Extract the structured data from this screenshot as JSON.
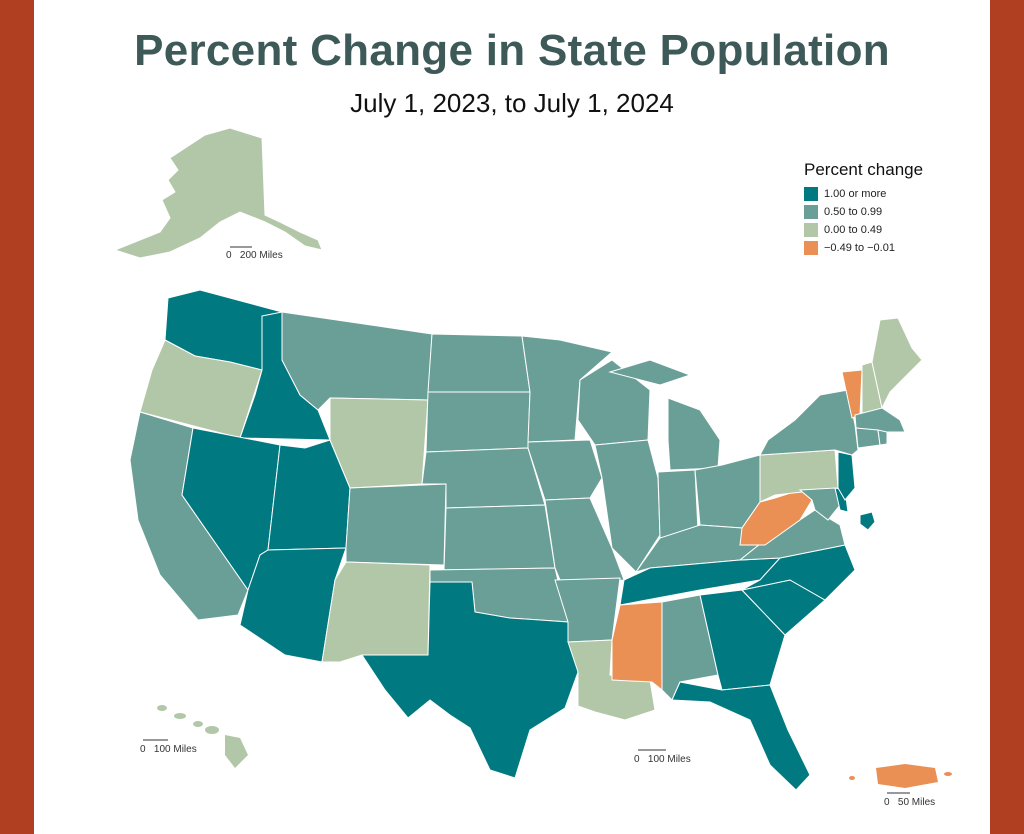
{
  "title": "Percent Change in State Population",
  "subtitle": "July 1, 2023, to July 1, 2024",
  "legend": {
    "title": "Percent change",
    "items": [
      {
        "label": "1.00 or more",
        "color": "#007a80"
      },
      {
        "label": "0.50 to 0.99",
        "color": "#6a9f98"
      },
      {
        "label": "0.00 to 0.49",
        "color": "#b2c7a8"
      },
      {
        "label": "−0.49 to −0.01",
        "color": "#ea9055"
      }
    ]
  },
  "scale_bars": {
    "alaska": "0   200 Miles",
    "hawaii": "0   100 Miles",
    "contiguous": "0   100 Miles",
    "puerto_rico": "0   50 Miles"
  },
  "categories": {
    "1.00 or more": [
      "WA",
      "ID",
      "NV",
      "UT",
      "AZ",
      "TX",
      "TN",
      "NC",
      "SC",
      "GA",
      "FL",
      "DE",
      "NJ",
      "DC"
    ],
    "0.50 to 0.99": [
      "MT",
      "ND",
      "SD",
      "NE",
      "KS",
      "OK",
      "CO",
      "MN",
      "IA",
      "MO",
      "AR",
      "WI",
      "IL",
      "IN",
      "MI",
      "OH",
      "KY",
      "VA",
      "MD",
      "AL",
      "NY",
      "CT",
      "RI",
      "MA",
      "CA"
    ],
    "0.00 to 0.49": [
      "AK",
      "OR",
      "WY",
      "NM",
      "LA",
      "PA",
      "ME",
      "NH",
      "HI"
    ],
    "-0.49 to -0.01": [
      "VT",
      "WV",
      "MS",
      "PR"
    ]
  }
}
